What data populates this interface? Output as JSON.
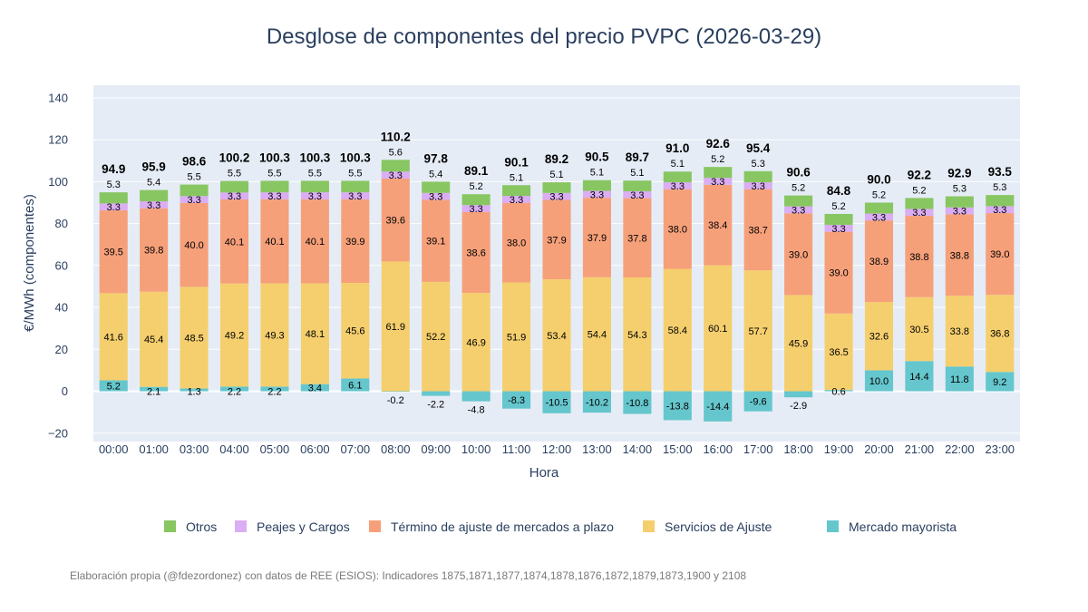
{
  "chart_data": {
    "type": "bar",
    "stacked": true,
    "title": "Desglose de componentes del precio PVPC (2026-03-29)",
    "xlabel": "Hora",
    "ylabel": "€/MWh (componentes)",
    "ylim": [
      -24,
      146
    ],
    "yticks": [
      -20,
      0,
      20,
      40,
      60,
      80,
      100,
      120,
      140
    ],
    "ytick_labels": [
      "−20",
      "0",
      "20",
      "40",
      "60",
      "80",
      "100",
      "120",
      "140"
    ],
    "categories": [
      "00:00",
      "01:00",
      "03:00",
      "04:00",
      "05:00",
      "06:00",
      "07:00",
      "08:00",
      "09:00",
      "10:00",
      "11:00",
      "12:00",
      "13:00",
      "14:00",
      "15:00",
      "16:00",
      "17:00",
      "18:00",
      "19:00",
      "20:00",
      "21:00",
      "22:00",
      "23:00"
    ],
    "series": [
      {
        "name": "Mercado mayorista",
        "color": "#65c6cd",
        "values": [
          5.2,
          2.1,
          1.3,
          2.2,
          2.2,
          3.4,
          6.1,
          -0.2,
          -2.2,
          -4.8,
          -8.3,
          -10.5,
          -10.2,
          -10.8,
          -13.8,
          -14.4,
          -9.6,
          -2.9,
          0.6,
          10.0,
          14.4,
          11.8,
          9.2
        ],
        "labels": [
          "5.2",
          "2.1",
          "1.3",
          "2.2",
          "2.2",
          "3.4",
          "6.1",
          "-0.2",
          "-2.2",
          "-4.8",
          "-8.3",
          "-10.5",
          "-10.2",
          "-10.8",
          "-13.8",
          "-14.4",
          "-9.6",
          "-2.9",
          "0.6",
          "10.0",
          "14.4",
          "11.8",
          "9.2"
        ]
      },
      {
        "name": "Servicios de Ajuste",
        "color": "#f5cf6e",
        "values": [
          41.6,
          45.4,
          48.5,
          49.2,
          49.3,
          48.1,
          45.6,
          61.9,
          52.2,
          46.9,
          51.9,
          53.4,
          54.4,
          54.3,
          58.4,
          60.1,
          57.7,
          45.9,
          36.5,
          32.6,
          30.5,
          33.8,
          36.8
        ],
        "labels": [
          "41.6",
          "45.4",
          "48.5",
          "49.2",
          "49.3",
          "48.1",
          "45.6",
          "61.9",
          "52.2",
          "46.9",
          "51.9",
          "53.4",
          "54.4",
          "54.3",
          "58.4",
          "60.1",
          "57.7",
          "45.9",
          "36.5",
          "32.6",
          "30.5",
          "33.8",
          "36.8"
        ]
      },
      {
        "name": "Término de ajuste de mercados a plazo",
        "color": "#f6a07a",
        "values": [
          39.5,
          39.8,
          40.0,
          40.1,
          40.1,
          40.1,
          39.9,
          39.6,
          39.1,
          38.6,
          38.0,
          37.9,
          37.9,
          37.8,
          38.0,
          38.4,
          38.7,
          39.0,
          39.0,
          38.9,
          38.8,
          38.8,
          39.0
        ],
        "labels": [
          "39.5",
          "39.8",
          "40.0",
          "40.1",
          "40.1",
          "40.1",
          "39.9",
          "39.6",
          "39.1",
          "38.6",
          "38.0",
          "37.9",
          "37.9",
          "37.8",
          "38.0",
          "38.4",
          "38.7",
          "39.0",
          "39.0",
          "38.9",
          "38.8",
          "38.8",
          "39.0"
        ]
      },
      {
        "name": "Peajes y Cargos",
        "color": "#dbadf2",
        "values": [
          3.3,
          3.3,
          3.3,
          3.3,
          3.3,
          3.3,
          3.3,
          3.3,
          3.3,
          3.3,
          3.3,
          3.3,
          3.3,
          3.3,
          3.3,
          3.3,
          3.3,
          3.3,
          3.3,
          3.3,
          3.3,
          3.3,
          3.3
        ],
        "labels": [
          "3.3",
          "3.3",
          "3.3",
          "3.3",
          "3.3",
          "3.3",
          "3.3",
          "3.3",
          "3.3",
          "3.3",
          "3.3",
          "3.3",
          "3.3",
          "3.3",
          "3.3",
          "3.3",
          "3.3",
          "3.3",
          "3.3",
          "3.3",
          "3.3",
          "3.3",
          "3.3"
        ]
      },
      {
        "name": "Otros",
        "color": "#88c662",
        "values": [
          5.3,
          5.4,
          5.5,
          5.5,
          5.5,
          5.5,
          5.5,
          5.6,
          5.4,
          5.2,
          5.1,
          5.1,
          5.1,
          5.1,
          5.1,
          5.2,
          5.3,
          5.2,
          5.2,
          5.2,
          5.2,
          5.3,
          5.3
        ],
        "labels": [
          "5.3",
          "5.4",
          "5.5",
          "5.5",
          "5.5",
          "5.5",
          "5.5",
          "5.6",
          "5.4",
          "5.2",
          "5.1",
          "5.1",
          "5.1",
          "5.1",
          "5.1",
          "5.2",
          "5.3",
          "5.2",
          "5.2",
          "5.2",
          "5.2",
          "5.3",
          "5.3"
        ]
      }
    ],
    "totals": [
      94.9,
      95.9,
      98.6,
      100.2,
      100.3,
      100.3,
      100.3,
      110.2,
      97.8,
      89.1,
      90.1,
      89.2,
      90.5,
      89.7,
      91.0,
      92.6,
      95.4,
      90.6,
      84.8,
      90.0,
      92.2,
      92.9,
      93.5
    ],
    "total_labels": [
      "94.9",
      "95.9",
      "98.6",
      "100.2",
      "100.3",
      "100.3",
      "100.3",
      "110.2",
      "97.8",
      "89.1",
      "90.1",
      "89.2",
      "90.5",
      "89.7",
      "91.0",
      "92.6",
      "95.4",
      "90.6",
      "84.8",
      "90.0",
      "92.2",
      "92.9",
      "93.5"
    ],
    "legend": {
      "position": "bottom",
      "items": [
        {
          "label": "Otros",
          "color": "#88c662"
        },
        {
          "label": "Peajes y Cargos",
          "color": "#dbadf2"
        },
        {
          "label": "Término de ajuste de mercados a plazo",
          "color": "#f6a07a"
        },
        {
          "label": "Servicios de Ajuste",
          "color": "#f5cf6e"
        },
        {
          "label": "Mercado mayorista",
          "color": "#65c6cd"
        }
      ]
    },
    "footnote": "Elaboración propia (@fdezordonez) con datos de REE (ESIOS): Indicadores 1875,1871,1877,1874,1878,1876,1872,1879,1873,1900 y 2108",
    "colors": {
      "plot_bg": "#e5ecf6",
      "grid": "#ffffff",
      "text": "#2a3f5f"
    }
  }
}
